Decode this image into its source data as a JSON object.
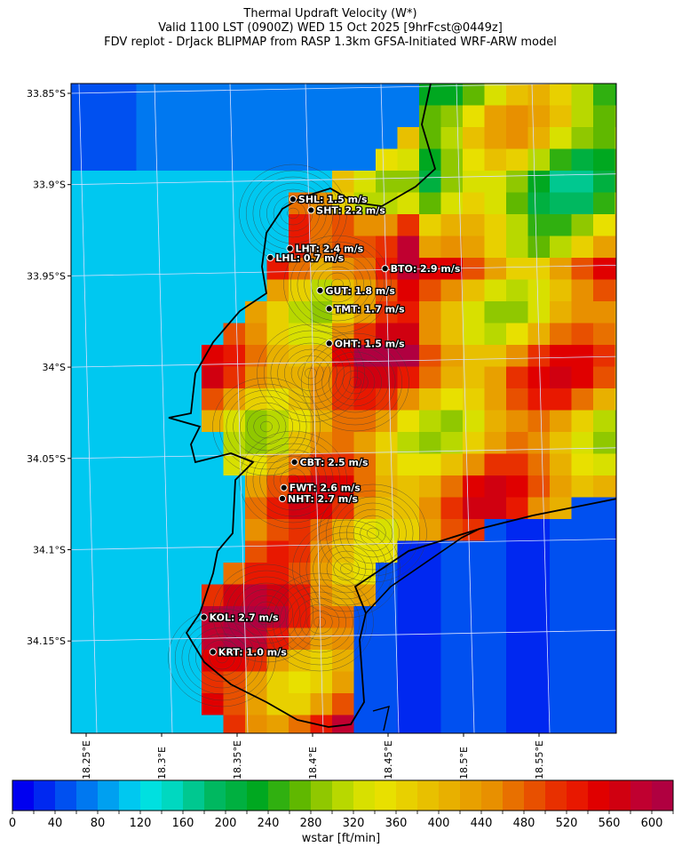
{
  "title": {
    "line1": "Thermal Updraft Velocity (W*)",
    "line2": "Valid 1100 LST (0900Z) WED 15 Oct 2025 [9hrFcst@0449z]",
    "line3": "FDV replot - DrJack BLIPMAP from RASP 1.3km GFSA-Initiated WRF-ARW model"
  },
  "axes": {
    "lat_ticks": [
      {
        "value": -33.85,
        "label": "33.85°S"
      },
      {
        "value": -33.9,
        "label": "33.9°S"
      },
      {
        "value": -33.95,
        "label": "33.95°S"
      },
      {
        "value": -34.0,
        "label": "34°S"
      },
      {
        "value": -34.05,
        "label": "34.05°S"
      },
      {
        "value": -34.1,
        "label": "34.1°S"
      },
      {
        "value": -34.15,
        "label": "34.15°S"
      }
    ],
    "lon_ticks": [
      {
        "value": 18.25,
        "label": "18.25°E"
      },
      {
        "value": 18.3,
        "label": "18.3°E"
      },
      {
        "value": 18.35,
        "label": "18.35°E"
      },
      {
        "value": 18.4,
        "label": "18.4°E"
      },
      {
        "value": 18.45,
        "label": "18.45°E"
      },
      {
        "value": 18.5,
        "label": "18.5°E"
      },
      {
        "value": 18.55,
        "label": "18.55°E"
      }
    ],
    "lon_range": [
      18.245,
      18.605
    ],
    "lat_range": [
      -34.2,
      -33.845
    ]
  },
  "stations": [
    {
      "code": "SHL",
      "label": "SHL: 1.5 m/s",
      "lon": 18.387,
      "lat": -33.908,
      "wstar": 1.5
    },
    {
      "code": "SHT",
      "label": "SHT: 2.2 m/s",
      "lon": 18.399,
      "lat": -33.914,
      "wstar": 2.2
    },
    {
      "code": "LHT",
      "label": "LHT: 2.4 m/s",
      "lon": 18.385,
      "lat": -33.935,
      "wstar": 2.4
    },
    {
      "code": "LHL",
      "label": "LHL: 0.7 m/s",
      "lon": 18.372,
      "lat": -33.94,
      "wstar": 0.7
    },
    {
      "code": "BTO",
      "label": "BTO: 2.9 m/s",
      "lon": 18.448,
      "lat": -33.946,
      "wstar": 2.9
    },
    {
      "code": "GUT",
      "label": "GUT: 1.8 m/s",
      "lon": 18.405,
      "lat": -33.958,
      "wstar": 1.8
    },
    {
      "code": "TMT",
      "label": "TMT: 1.7 m/s",
      "lon": 18.411,
      "lat": -33.968,
      "wstar": 1.7
    },
    {
      "code": "OHT",
      "label": "OHT: 1.5 m/s",
      "lon": 18.411,
      "lat": -33.987,
      "wstar": 1.5
    },
    {
      "code": "CBT",
      "label": "CBT: 2.5 m/s",
      "lon": 18.388,
      "lat": -34.052,
      "wstar": 2.5
    },
    {
      "code": "FWT",
      "label": "FWT: 2.6 m/s",
      "lon": 18.381,
      "lat": -34.066,
      "wstar": 2.6
    },
    {
      "code": "NHT",
      "label": "NHT: 2.7 m/s",
      "lon": 18.38,
      "lat": -34.072,
      "wstar": 2.7
    },
    {
      "code": "KOL",
      "label": "KOL: 2.7 m/s",
      "lon": 18.328,
      "lat": -34.137,
      "wstar": 2.7
    },
    {
      "code": "KRT",
      "label": "KRT: 1.0 m/s",
      "lon": 18.334,
      "lat": -34.156,
      "wstar": 1.0
    }
  ],
  "colorbar": {
    "label": "wstar [ft/min]",
    "min": 0,
    "max": 620,
    "step": 20,
    "tick_values": [
      0,
      40,
      80,
      120,
      160,
      200,
      240,
      280,
      320,
      360,
      400,
      440,
      480,
      520,
      560,
      600
    ],
    "tick_labels": [
      "0",
      "40",
      "80",
      "120",
      "160",
      "200",
      "240",
      "280",
      "320",
      "360",
      "400",
      "440",
      "480",
      "520",
      "560",
      "600"
    ],
    "colors": [
      "#0000f0",
      "#0028f0",
      "#0050f0",
      "#0078f0",
      "#00a0f0",
      "#00c8f0",
      "#00e0e0",
      "#00d8c0",
      "#00c890",
      "#00b860",
      "#00b040",
      "#00a820",
      "#30b010",
      "#60b800",
      "#90c800",
      "#b8d800",
      "#d8e000",
      "#e8e000",
      "#e8d000",
      "#e8c000",
      "#e8b000",
      "#e8a000",
      "#e89000",
      "#e87000",
      "#e85000",
      "#e83000",
      "#e81800",
      "#e00000",
      "#d00010",
      "#c00030",
      "#b00040"
    ]
  },
  "colors": {
    "coastline": "#000000",
    "contour": "#3c3c3c",
    "gridline": "#d8e0ff"
  }
}
